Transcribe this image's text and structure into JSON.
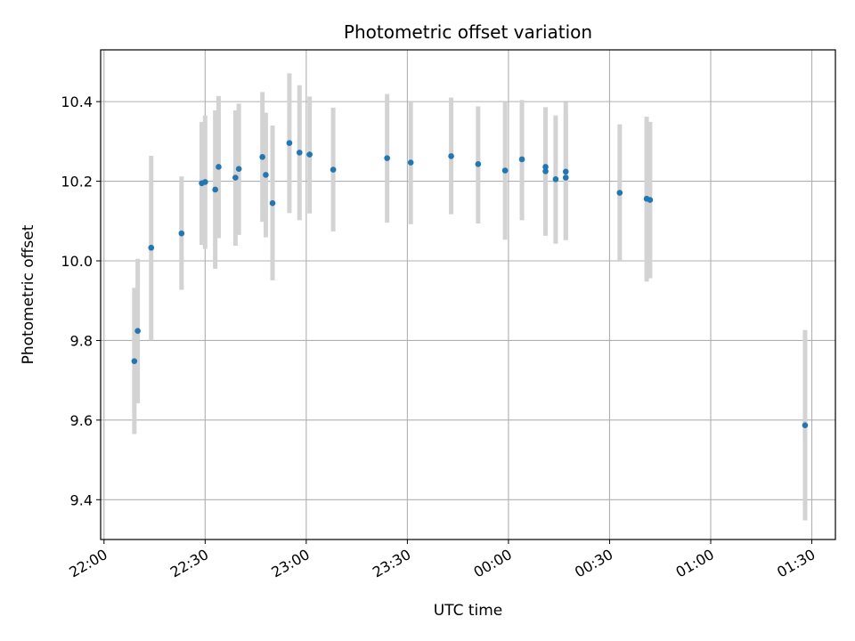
{
  "chart_data": {
    "type": "scatter",
    "title": "Photometric offset variation",
    "xlabel": "UTC time",
    "ylabel": "Photometric offset",
    "xlim": [
      "21:59",
      "01:37"
    ],
    "ylim": [
      9.3,
      10.53
    ],
    "x_ticks": [
      "22:00",
      "22:30",
      "23:00",
      "23:30",
      "00:00",
      "00:30",
      "01:00",
      "01:30"
    ],
    "y_ticks": [
      "9.4",
      "9.6",
      "9.8",
      "10.0",
      "10.2",
      "10.4"
    ],
    "grid": true,
    "point_color": "#1f77b4",
    "errorbar_color": "#d3d3d3",
    "points": [
      {
        "t": "22:09",
        "y": 9.748,
        "lo": 9.565,
        "hi": 9.932
      },
      {
        "t": "22:10",
        "y": 9.824,
        "lo": 9.642,
        "hi": 10.005
      },
      {
        "t": "22:14",
        "y": 10.033,
        "lo": 9.8,
        "hi": 10.264
      },
      {
        "t": "22:23",
        "y": 10.069,
        "lo": 9.927,
        "hi": 10.212
      },
      {
        "t": "22:29",
        "y": 10.195,
        "lo": 10.04,
        "hi": 10.349
      },
      {
        "t": "22:30",
        "y": 10.198,
        "lo": 10.03,
        "hi": 10.365
      },
      {
        "t": "22:33",
        "y": 10.179,
        "lo": 9.98,
        "hi": 10.378
      },
      {
        "t": "22:34",
        "y": 10.236,
        "lo": 10.057,
        "hi": 10.414
      },
      {
        "t": "22:39",
        "y": 10.209,
        "lo": 10.038,
        "hi": 10.378
      },
      {
        "t": "22:40",
        "y": 10.231,
        "lo": 10.065,
        "hi": 10.395
      },
      {
        "t": "22:47",
        "y": 10.261,
        "lo": 10.098,
        "hi": 10.424
      },
      {
        "t": "22:48",
        "y": 10.216,
        "lo": 10.059,
        "hi": 10.372
      },
      {
        "t": "22:50",
        "y": 10.145,
        "lo": 9.951,
        "hi": 10.34
      },
      {
        "t": "22:55",
        "y": 10.296,
        "lo": 10.12,
        "hi": 10.471
      },
      {
        "t": "22:58",
        "y": 10.272,
        "lo": 10.102,
        "hi": 10.441
      },
      {
        "t": "23:01",
        "y": 10.267,
        "lo": 10.119,
        "hi": 10.413
      },
      {
        "t": "23:08",
        "y": 10.229,
        "lo": 10.074,
        "hi": 10.385
      },
      {
        "t": "23:24",
        "y": 10.258,
        "lo": 10.096,
        "hi": 10.419
      },
      {
        "t": "23:31",
        "y": 10.247,
        "lo": 10.092,
        "hi": 10.402
      },
      {
        "t": "23:43",
        "y": 10.263,
        "lo": 10.117,
        "hi": 10.41
      },
      {
        "t": "23:51",
        "y": 10.243,
        "lo": 10.094,
        "hi": 10.388
      },
      {
        "t": "23:59",
        "y": 10.227,
        "lo": 10.053,
        "hi": 10.4
      },
      {
        "t": "00:04",
        "y": 10.255,
        "lo": 10.102,
        "hi": 10.404
      },
      {
        "t": "00:11",
        "y": 10.236,
        "lo": 10.088,
        "hi": 10.386
      },
      {
        "t": "00:11",
        "y": 10.225,
        "lo": 10.063,
        "hi": 10.384
      },
      {
        "t": "00:14",
        "y": 10.205,
        "lo": 10.043,
        "hi": 10.365
      },
      {
        "t": "00:17",
        "y": 10.209,
        "lo": 10.052,
        "hi": 10.368
      },
      {
        "t": "00:17",
        "y": 10.224,
        "lo": 10.054,
        "hi": 10.399
      },
      {
        "t": "00:33",
        "y": 10.171,
        "lo": 10.0,
        "hi": 10.343
      },
      {
        "t": "00:41",
        "y": 10.156,
        "lo": 9.948,
        "hi": 10.362
      },
      {
        "t": "00:42",
        "y": 10.153,
        "lo": 9.956,
        "hi": 10.349
      },
      {
        "t": "01:28",
        "y": 9.587,
        "lo": 9.348,
        "hi": 9.826
      }
    ]
  }
}
